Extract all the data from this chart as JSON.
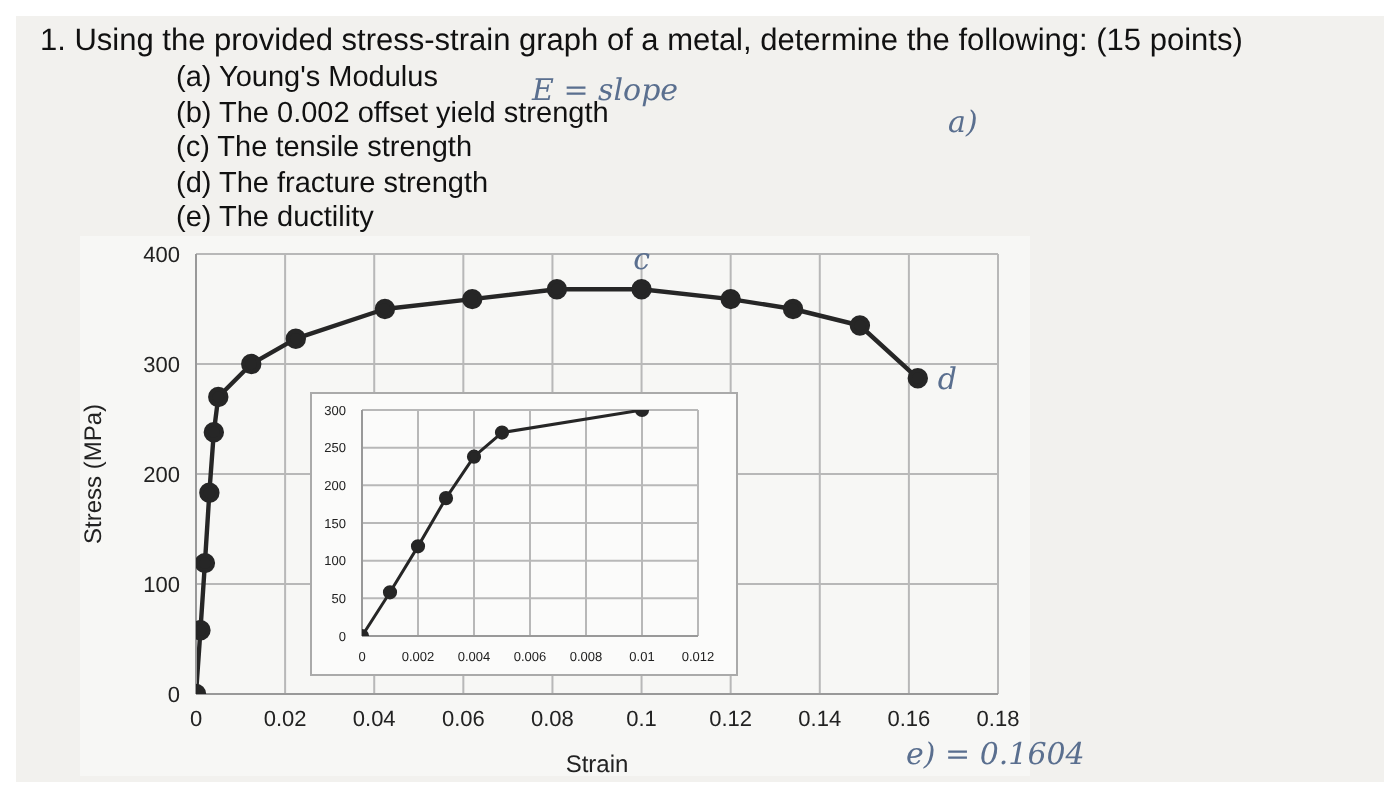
{
  "chart_data": [
    {
      "type": "line",
      "title": "1. Using the provided stress-strain graph of a metal, determine the following: (15 points)",
      "subtitle": "(a) Young's Modulus\n(b) The 0.002 offset yield strength\n(c) The tensile strength\n(d) The fracture strength\n(e) The ductility",
      "xlabel": "Strain",
      "ylabel": "Stress (MPa)",
      "x": [
        0,
        0.001,
        0.002,
        0.003,
        0.004,
        0.005,
        0.0124,
        0.0224,
        0.0424,
        0.062,
        0.081,
        0.1,
        0.12,
        0.134,
        0.149,
        0.162
      ],
      "series": [
        {
          "color": "#262626",
          "values": [
            0,
            58,
            119,
            183,
            238,
            270,
            300,
            323,
            350,
            359,
            368,
            368,
            359,
            350,
            335,
            287
          ]
        }
      ],
      "xlim": [
        0,
        0.18
      ],
      "xticks": [
        0,
        0.02,
        0.04,
        0.06,
        0.08,
        0.1,
        0.12,
        0.14,
        0.16,
        0.18
      ],
      "ylim": [
        0,
        400
      ],
      "yticks": [
        0,
        100,
        200,
        300,
        400
      ],
      "grid": true,
      "marker": "circle",
      "line_style": "solid",
      "annotations": [
        "E = slope",
        "a)",
        {
          "text": "c",
          "x": 0.1,
          "y": 368
        },
        {
          "text": "d",
          "x": 0.162,
          "y": 287
        },
        "e) = 0.1604"
      ]
    },
    {
      "type": "line",
      "x": [
        0,
        0.001,
        0.002,
        0.003,
        0.004,
        0.005,
        0.01
      ],
      "series": [
        {
          "color": "#262626",
          "values": [
            0,
            58,
            119,
            183,
            238,
            270,
            300
          ]
        }
      ],
      "xlim": [
        0,
        0.012
      ],
      "xticks": [
        0,
        0.002,
        0.004,
        0.006,
        0.008,
        0.01,
        0.012
      ],
      "ylim": [
        0,
        300
      ],
      "yticks": [
        0,
        50,
        100,
        150,
        200,
        250,
        300
      ],
      "grid": true,
      "marker": "circle",
      "line_style": "solid"
    }
  ]
}
